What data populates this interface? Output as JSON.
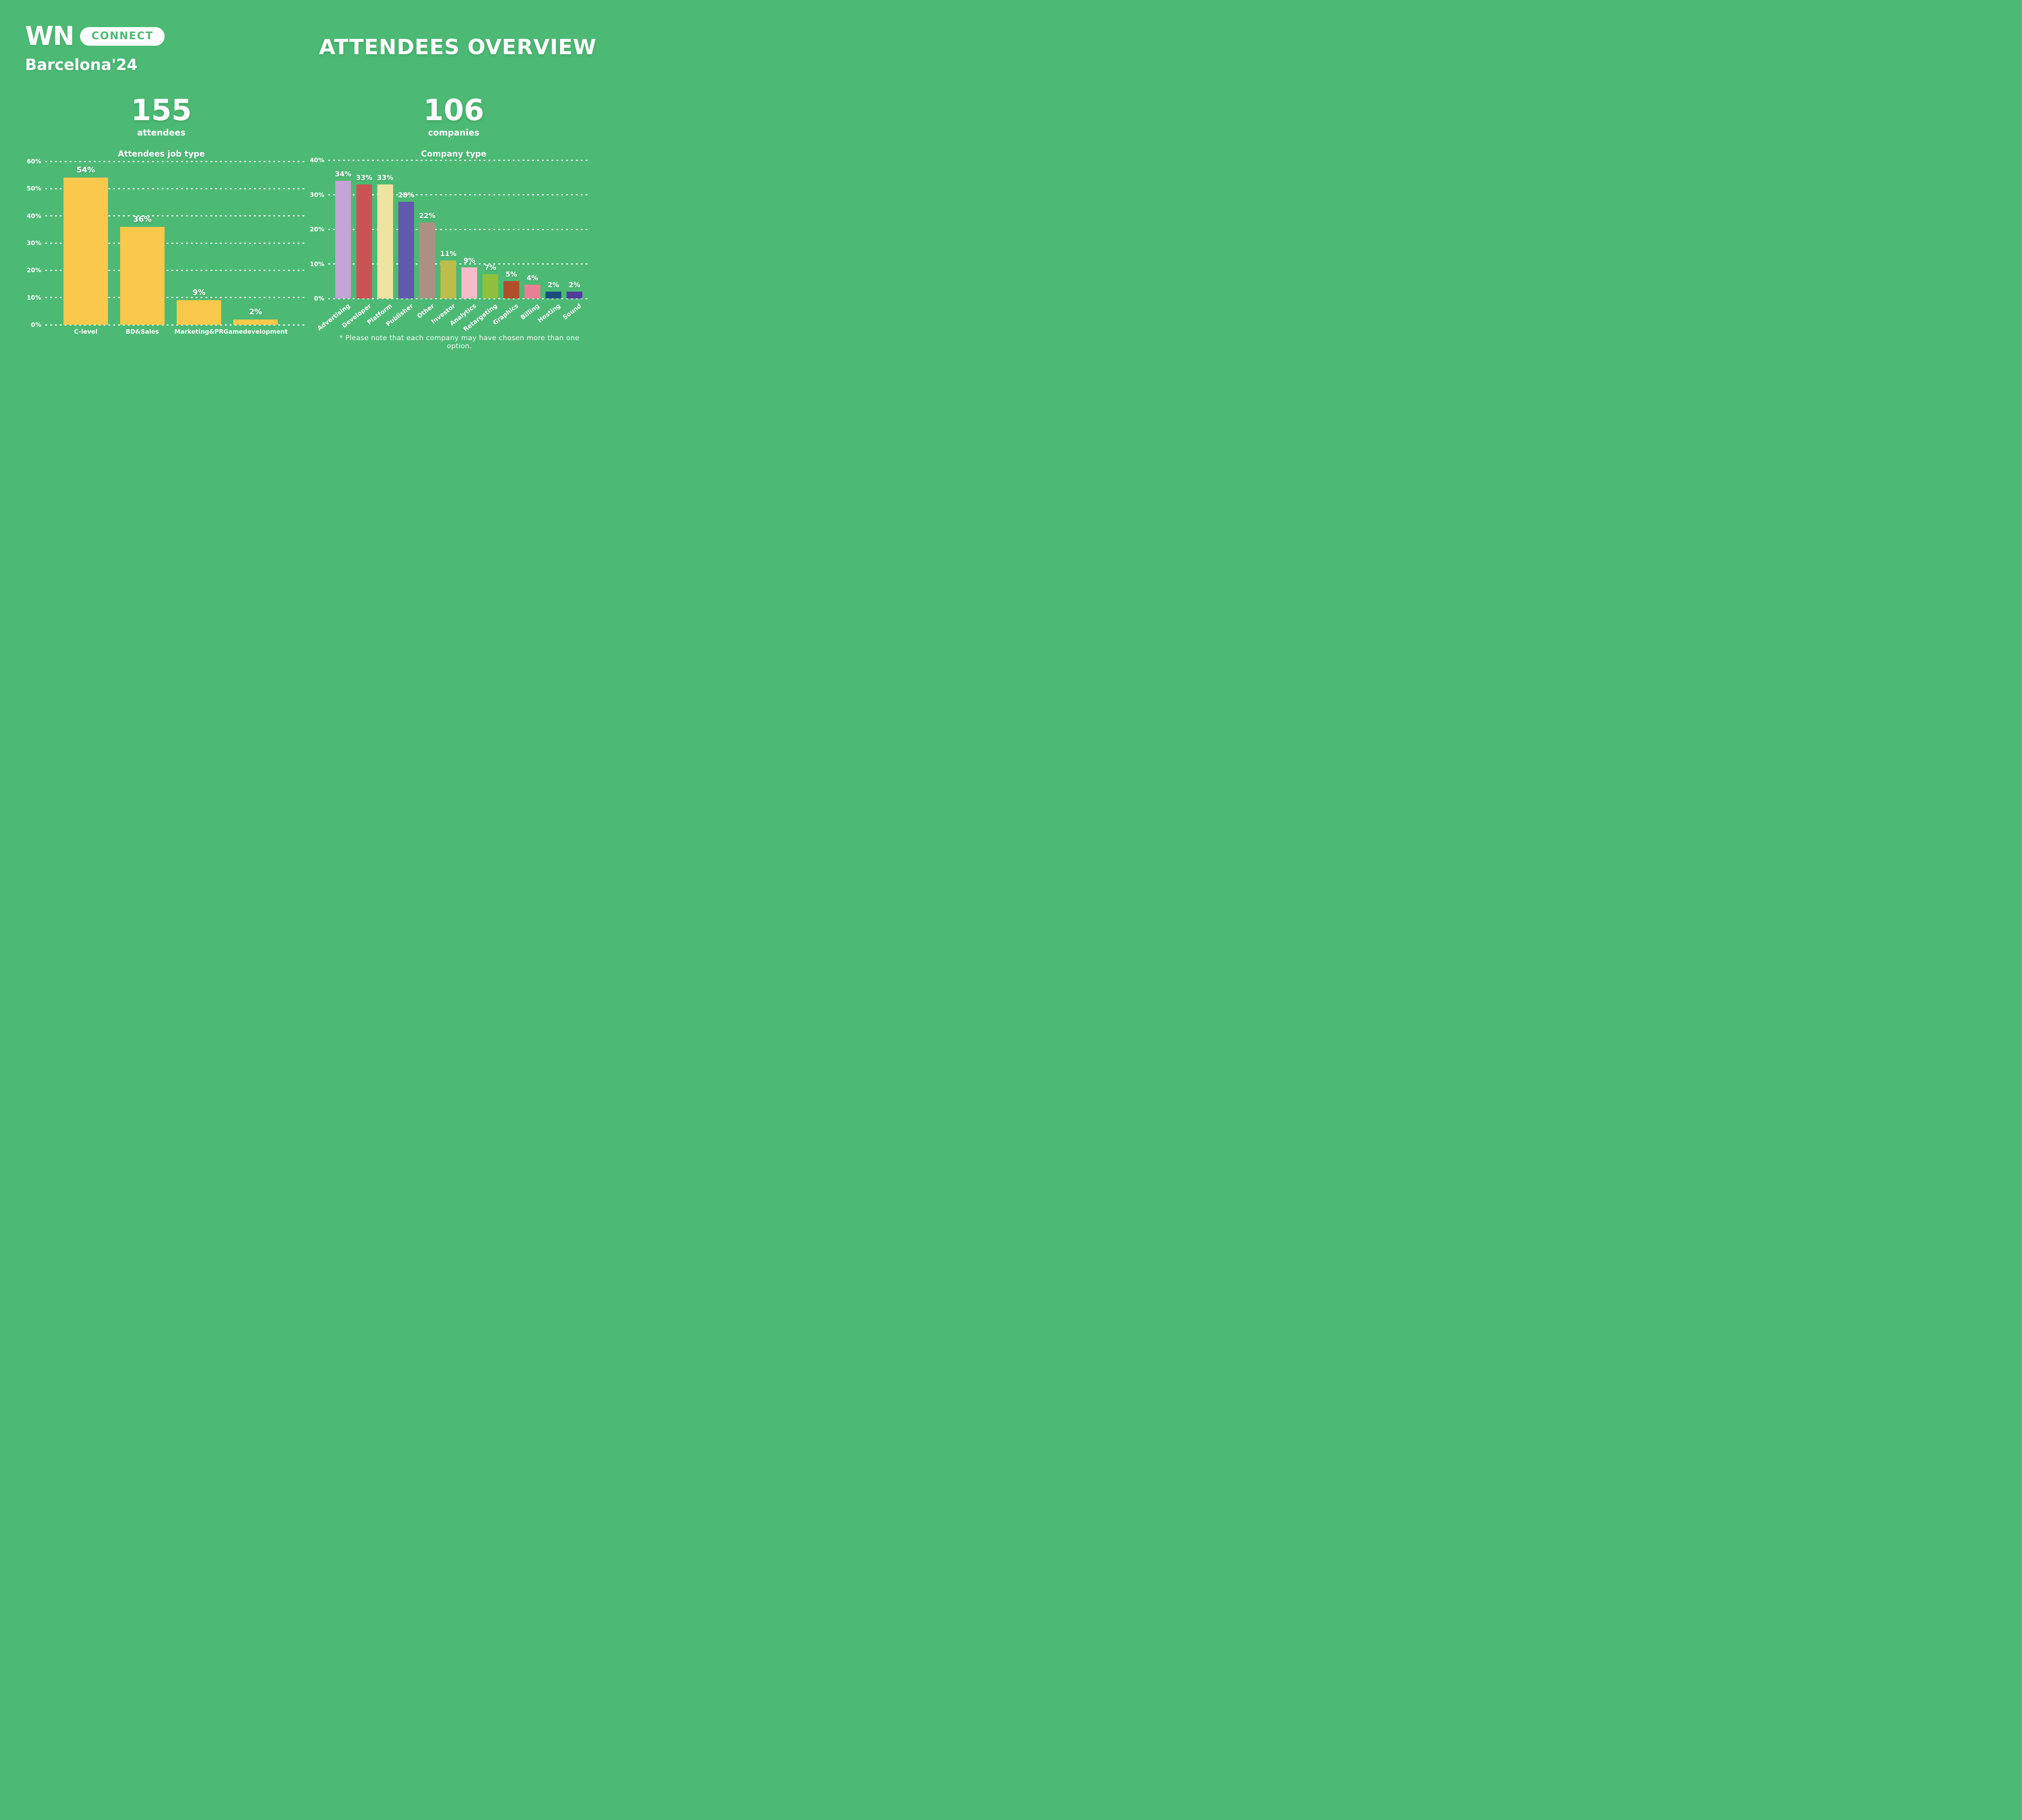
{
  "brand": {
    "wn": "WN",
    "connect": "CONNECT",
    "event": "Barcelona'24"
  },
  "page_title": "ATTENDEES OVERVIEW",
  "footnote": "* Please note that each company may have chosen more than one option.",
  "colors": {
    "background": "#4CBA74",
    "text": "#FFFFFF"
  },
  "chart_data": [
    {
      "type": "bar",
      "title": "Attendees job type",
      "stat_value": "155",
      "stat_label": "attendees",
      "unit": "%",
      "categories": [
        "C-level",
        "BD&Sales",
        "Marketing&PR",
        "Gamedevelopment"
      ],
      "values": [
        54,
        36,
        9,
        2
      ],
      "bar_color": "#FAC84B",
      "ylim": [
        0,
        60
      ],
      "yticks": [
        0,
        10,
        20,
        30,
        40,
        50,
        60
      ],
      "grid": "dotted-white",
      "legend": "none"
    },
    {
      "type": "bar",
      "title": "Company type",
      "stat_value": "106",
      "stat_label": "companies",
      "unit": "%",
      "categories": [
        "Advertising",
        "Developer",
        "Platform",
        "Publisher",
        "Other",
        "Investor",
        "Analytics",
        "Retargeting",
        "Graphics",
        "Billing",
        "Hosting",
        "Sound"
      ],
      "values": [
        34,
        33,
        33,
        28,
        22,
        11,
        9,
        7,
        5,
        4,
        2,
        2
      ],
      "bar_colors": [
        "#C7A3D6",
        "#CB5355",
        "#EFE3A1",
        "#6059AD",
        "#AC9183",
        "#BEBC4B",
        "#F3BCC8",
        "#8FC13E",
        "#B0502A",
        "#E97E94",
        "#1A4E7F",
        "#513D9E"
      ],
      "ylim": [
        0,
        40
      ],
      "yticks": [
        0,
        10,
        20,
        30,
        40
      ],
      "grid": "dotted-white",
      "legend": "none"
    }
  ]
}
